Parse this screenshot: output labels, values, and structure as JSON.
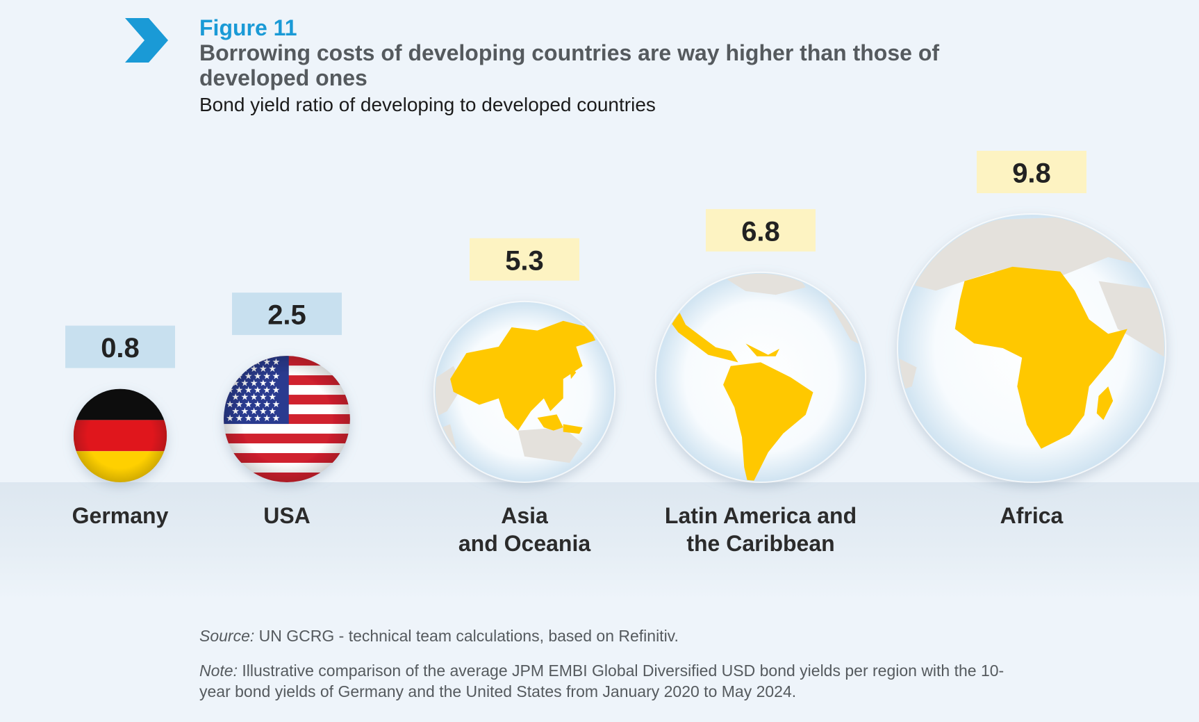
{
  "figure": {
    "label": "Figure 11",
    "title": "Borrowing costs of developing countries are way higher than those of developed ones",
    "subtitle": "Bond yield ratio of developing to developed countries"
  },
  "chart_data": {
    "type": "bubble",
    "categories": [
      "Germany",
      "USA",
      "Asia\nand Oceania",
      "Latin America and\nthe Caribbean",
      "Africa"
    ],
    "values": [
      0.8,
      2.5,
      5.3,
      6.8,
      9.8
    ],
    "markers": [
      "flag-germany",
      "flag-usa",
      "globe-asia-oceania",
      "globe-latin-america",
      "globe-africa"
    ],
    "value_box_colors": [
      "#c8e0ef",
      "#c8e0ef",
      "#fdf3c2",
      "#fdf3c2",
      "#fdf3c2"
    ],
    "highlight_color": "#ffc800"
  },
  "footer": {
    "source_label": "Source:",
    "source_text": " UN GCRG - technical team calculations, based on Refinitiv.",
    "note_label": "Note:",
    "note_text": " Illustrative comparison of the average JPM EMBI Global Diversified USD bond yields per region with the 10-year bond yields of Germany and the United States from January 2020 to May 2024."
  },
  "colors": {
    "accent": "#1a9ad6",
    "title": "#555a5e"
  }
}
